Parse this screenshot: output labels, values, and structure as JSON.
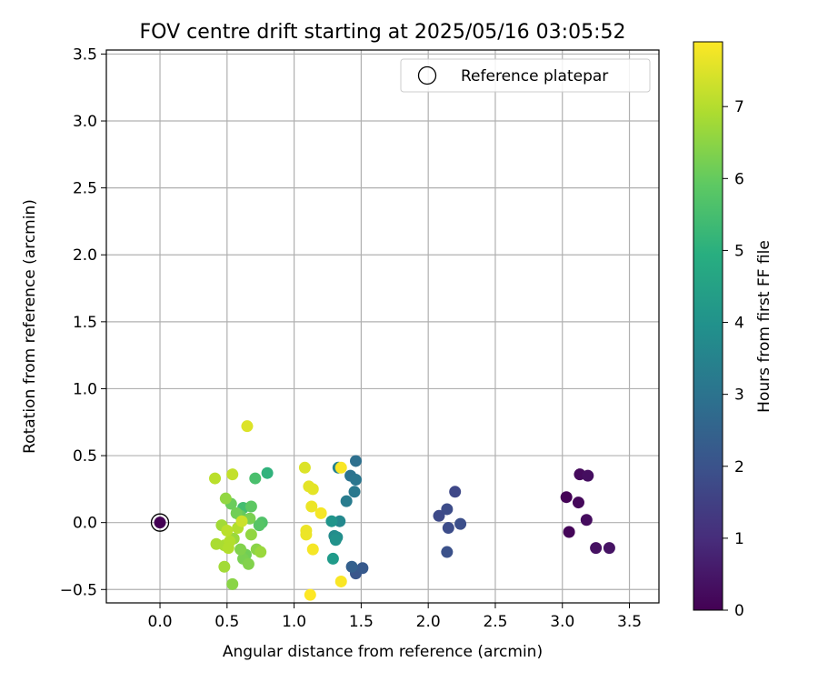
{
  "chart_data": {
    "type": "scatter",
    "title": "FOV centre drift starting at 2025/05/16 03:05:52",
    "xlabel": "Angular distance from reference (arcmin)",
    "ylabel": "Rotation from reference (arcmin)",
    "xlim": [
      -0.4,
      3.72
    ],
    "ylim": [
      -0.6,
      3.53
    ],
    "xticks": [
      "0.0",
      "0.5",
      "1.0",
      "1.5",
      "2.0",
      "2.5",
      "3.0",
      "3.5"
    ],
    "xtick_values": [
      0,
      0.5,
      1.0,
      1.5,
      2.0,
      2.5,
      3.0,
      3.5
    ],
    "yticks": [
      "−0.5",
      "0.0",
      "0.5",
      "1.0",
      "1.5",
      "2.0",
      "2.5",
      "3.0",
      "3.5"
    ],
    "ytick_values": [
      -0.5,
      0,
      0.5,
      1.0,
      1.5,
      2.0,
      2.5,
      3.0,
      3.5
    ],
    "grid": true,
    "legend": {
      "position": "top-right",
      "entries": [
        "Reference platepar"
      ]
    },
    "colorbar": {
      "label": "Hours from first FF file",
      "colormap": "viridis",
      "range": [
        0,
        7.9
      ],
      "ticks": [
        "0",
        "1",
        "2",
        "3",
        "4",
        "5",
        "6",
        "7"
      ],
      "tick_values": [
        0,
        1,
        2,
        3,
        4,
        5,
        6,
        7
      ]
    },
    "reference_point": {
      "x": 0.0,
      "y": 0.0
    },
    "points": [
      {
        "x": 0.0,
        "y": 0.0,
        "c": 0.0
      },
      {
        "x": 3.03,
        "y": 0.19,
        "c": 0.05
      },
      {
        "x": 3.05,
        "y": -0.07,
        "c": 0.1
      },
      {
        "x": 3.12,
        "y": 0.15,
        "c": 0.15
      },
      {
        "x": 3.13,
        "y": 0.36,
        "c": 0.2
      },
      {
        "x": 3.18,
        "y": 0.02,
        "c": 0.25
      },
      {
        "x": 3.19,
        "y": 0.35,
        "c": 0.3
      },
      {
        "x": 3.25,
        "y": -0.19,
        "c": 0.35
      },
      {
        "x": 3.35,
        "y": -0.19,
        "c": 0.4
      },
      {
        "x": 2.2,
        "y": 0.23,
        "c": 1.7
      },
      {
        "x": 2.08,
        "y": 0.05,
        "c": 1.75
      },
      {
        "x": 2.14,
        "y": 0.1,
        "c": 1.8
      },
      {
        "x": 2.15,
        "y": -0.04,
        "c": 1.85
      },
      {
        "x": 2.24,
        "y": -0.01,
        "c": 1.9
      },
      {
        "x": 2.14,
        "y": -0.22,
        "c": 1.95
      },
      {
        "x": 1.46,
        "y": -0.38,
        "c": 2.1
      },
      {
        "x": 1.51,
        "y": -0.34,
        "c": 2.2
      },
      {
        "x": 1.43,
        "y": -0.33,
        "c": 2.4
      },
      {
        "x": 1.46,
        "y": 0.46,
        "c": 2.9
      },
      {
        "x": 1.42,
        "y": 0.35,
        "c": 3.0
      },
      {
        "x": 1.46,
        "y": 0.32,
        "c": 3.1
      },
      {
        "x": 1.45,
        "y": 0.23,
        "c": 3.2
      },
      {
        "x": 1.39,
        "y": 0.16,
        "c": 3.3
      },
      {
        "x": 1.33,
        "y": 0.41,
        "c": 3.5
      },
      {
        "x": 1.34,
        "y": 0.01,
        "c": 3.7
      },
      {
        "x": 1.3,
        "y": -0.1,
        "c": 3.8
      },
      {
        "x": 1.32,
        "y": -0.11,
        "c": 3.9
      },
      {
        "x": 1.31,
        "y": -0.13,
        "c": 4.0
      },
      {
        "x": 1.28,
        "y": 0.01,
        "c": 4.1
      },
      {
        "x": 1.29,
        "y": -0.27,
        "c": 4.3
      },
      {
        "x": 0.8,
        "y": 0.37,
        "c": 5.1
      },
      {
        "x": 0.62,
        "y": 0.11,
        "c": 5.5
      },
      {
        "x": 0.71,
        "y": 0.33,
        "c": 5.6
      },
      {
        "x": 0.76,
        "y": 0.0,
        "c": 5.7
      },
      {
        "x": 0.74,
        "y": -0.02,
        "c": 5.8
      },
      {
        "x": 0.68,
        "y": 0.12,
        "c": 5.9
      },
      {
        "x": 0.6,
        "y": 0.05,
        "c": 6.0
      },
      {
        "x": 0.53,
        "y": 0.14,
        "c": 6.1
      },
      {
        "x": 0.57,
        "y": 0.07,
        "c": 6.2
      },
      {
        "x": 0.64,
        "y": -0.24,
        "c": 6.2
      },
      {
        "x": 0.62,
        "y": -0.27,
        "c": 6.3
      },
      {
        "x": 0.67,
        "y": 0.03,
        "c": 6.3
      },
      {
        "x": 0.6,
        "y": -0.2,
        "c": 6.4
      },
      {
        "x": 0.66,
        "y": -0.31,
        "c": 6.4
      },
      {
        "x": 0.72,
        "y": -0.2,
        "c": 6.5
      },
      {
        "x": 0.54,
        "y": -0.46,
        "c": 6.5
      },
      {
        "x": 0.49,
        "y": 0.18,
        "c": 6.6
      },
      {
        "x": 0.68,
        "y": -0.09,
        "c": 6.6
      },
      {
        "x": 0.75,
        "y": -0.22,
        "c": 6.7
      },
      {
        "x": 0.55,
        "y": -0.12,
        "c": 6.7
      },
      {
        "x": 0.46,
        "y": -0.02,
        "c": 6.8
      },
      {
        "x": 0.48,
        "y": -0.33,
        "c": 6.8
      },
      {
        "x": 0.42,
        "y": -0.16,
        "c": 6.9
      },
      {
        "x": 0.48,
        "y": -0.17,
        "c": 6.9
      },
      {
        "x": 0.52,
        "y": -0.14,
        "c": 7.0
      },
      {
        "x": 0.51,
        "y": -0.19,
        "c": 7.0
      },
      {
        "x": 0.58,
        "y": -0.04,
        "c": 7.0
      },
      {
        "x": 0.5,
        "y": -0.06,
        "c": 7.1
      },
      {
        "x": 0.41,
        "y": 0.33,
        "c": 7.1
      },
      {
        "x": 0.54,
        "y": 0.36,
        "c": 7.2
      },
      {
        "x": 0.61,
        "y": 0.01,
        "c": 7.3
      },
      {
        "x": 0.65,
        "y": 0.72,
        "c": 7.5
      },
      {
        "x": 1.08,
        "y": 0.41,
        "c": 7.5
      },
      {
        "x": 1.14,
        "y": 0.25,
        "c": 7.6
      },
      {
        "x": 1.11,
        "y": 0.27,
        "c": 7.6
      },
      {
        "x": 1.13,
        "y": 0.12,
        "c": 7.7
      },
      {
        "x": 1.09,
        "y": -0.06,
        "c": 7.7
      },
      {
        "x": 1.09,
        "y": -0.09,
        "c": 7.7
      },
      {
        "x": 1.2,
        "y": 0.07,
        "c": 7.8
      },
      {
        "x": 1.14,
        "y": -0.2,
        "c": 7.8
      },
      {
        "x": 1.35,
        "y": 0.41,
        "c": 7.85
      },
      {
        "x": 1.35,
        "y": -0.44,
        "c": 7.85
      },
      {
        "x": 1.12,
        "y": -0.54,
        "c": 7.9
      }
    ]
  }
}
